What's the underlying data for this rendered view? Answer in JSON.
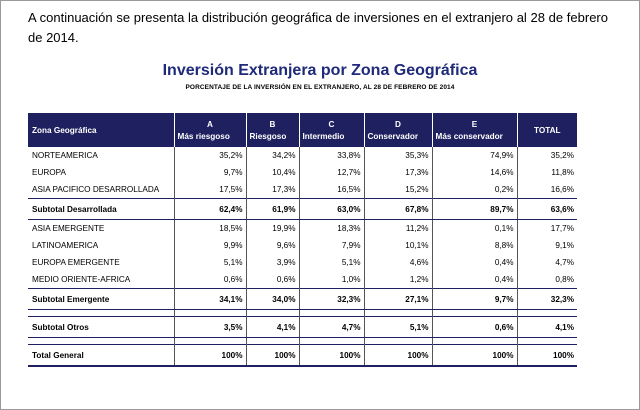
{
  "intro": "A continuación se presenta la distribución geográfica de inversiones en el extranjero al 28 de febrero de 2014.",
  "title": "Inversión Extranjera por Zona Geográfica",
  "subtitle": "PORCENTAJE DE LA INVERSIÓN EN EL EXTRANJERO, AL 28 DE FEBRERO DE 2014",
  "colors": {
    "header_bg": "#1f2060",
    "title": "#1f2a7a"
  },
  "columns": [
    {
      "code": "",
      "label": "Zona Geográfica"
    },
    {
      "code": "A",
      "label": "Más riesgoso"
    },
    {
      "code": "B",
      "label": "Riesgoso"
    },
    {
      "code": "C",
      "label": "Intermedio"
    },
    {
      "code": "D",
      "label": "Conservador"
    },
    {
      "code": "E",
      "label": "Más conservador"
    },
    {
      "code": "",
      "label": "TOTAL"
    }
  ],
  "groups": [
    {
      "rows": [
        {
          "zone": "NORTEAMERICA",
          "values": [
            "35,2%",
            "34,2%",
            "33,8%",
            "35,3%",
            "74,9%",
            "35,2%"
          ]
        },
        {
          "zone": "EUROPA",
          "values": [
            "9,7%",
            "10,4%",
            "12,7%",
            "17,3%",
            "14,6%",
            "11,8%"
          ]
        },
        {
          "zone": "ASIA PACIFICO DESARROLLADA",
          "values": [
            "17,5%",
            "17,3%",
            "16,5%",
            "15,2%",
            "0,2%",
            "16,6%"
          ]
        }
      ],
      "subtotal": {
        "zone": "Subtotal Desarrollada",
        "values": [
          "62,4%",
          "61,9%",
          "63,0%",
          "67,8%",
          "89,7%",
          "63,6%"
        ]
      }
    },
    {
      "rows": [
        {
          "zone": "ASIA EMERGENTE",
          "values": [
            "18,5%",
            "19,9%",
            "18,3%",
            "11,2%",
            "0,1%",
            "17,7%"
          ]
        },
        {
          "zone": "LATINOAMERICA",
          "values": [
            "9,9%",
            "9,6%",
            "7,9%",
            "10,1%",
            "8,8%",
            "9,1%"
          ]
        },
        {
          "zone": "EUROPA EMERGENTE",
          "values": [
            "5,1%",
            "3,9%",
            "5,1%",
            "4,6%",
            "0,4%",
            "4,7%"
          ]
        },
        {
          "zone": "MEDIO ORIENTE-AFRICA",
          "values": [
            "0,6%",
            "0,6%",
            "1,0%",
            "1,2%",
            "0,4%",
            "0,8%"
          ]
        }
      ],
      "subtotal": {
        "zone": "Subtotal Emergente",
        "values": [
          "34,1%",
          "34,0%",
          "32,3%",
          "27,1%",
          "9,7%",
          "32,3%"
        ]
      }
    },
    {
      "rows": [],
      "subtotal": {
        "zone": "Subtotal Otros",
        "values": [
          "3,5%",
          "4,1%",
          "4,7%",
          "5,1%",
          "0,6%",
          "4,1%"
        ]
      }
    }
  ],
  "total": {
    "zone": "Total General",
    "values": [
      "100%",
      "100%",
      "100%",
      "100%",
      "100%",
      "100%"
    ]
  }
}
